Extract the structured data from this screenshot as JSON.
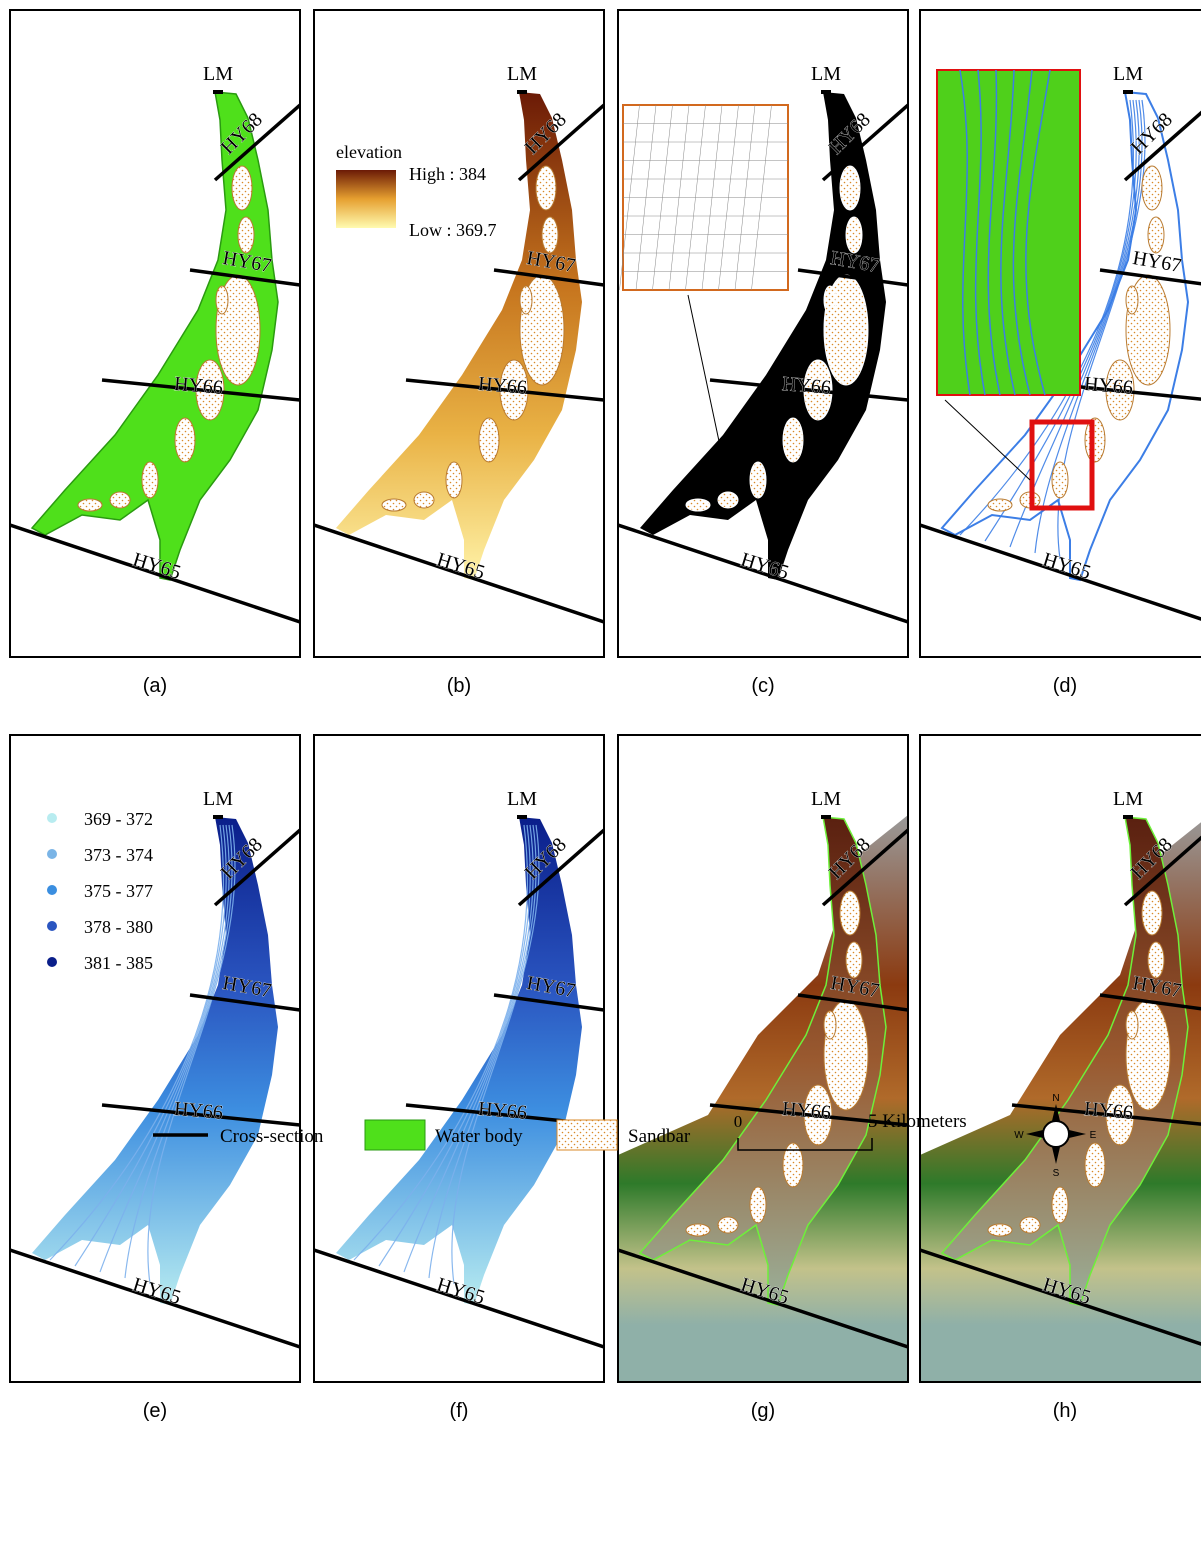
{
  "panels": [
    {
      "label": "(a)",
      "sections": [
        "LM",
        "HY68",
        "HY67",
        "HY66",
        "HY65"
      ]
    },
    {
      "label": "(b)",
      "sections": [
        "LM",
        "HY68",
        "HY67",
        "HY66",
        "HY65"
      ],
      "legend": {
        "title": "elevation",
        "high": "High : 384",
        "low": "Low : 369.7"
      }
    },
    {
      "label": "(c)",
      "sections": [
        "LM",
        "HY68",
        "HY67",
        "HY66",
        "HY65"
      ]
    },
    {
      "label": "(d)",
      "sections": [
        "LM",
        "HY68",
        "HY67",
        "HY66",
        "HY65"
      ]
    },
    {
      "label": "(e)",
      "sections": [
        "LM",
        "HY68",
        "HY67",
        "HY66",
        "HY65"
      ],
      "legend": {
        "classes": [
          "369 - 372",
          "373 - 374",
          "375 - 377",
          "378 - 380",
          "381 - 385"
        ]
      }
    },
    {
      "label": "(f)",
      "sections": [
        "LM",
        "HY68",
        "HY67",
        "HY66",
        "HY65"
      ]
    },
    {
      "label": "(g)",
      "sections": [
        "LM",
        "HY68",
        "HY67",
        "HY66",
        "HY65"
      ]
    },
    {
      "label": "(h)",
      "sections": [
        "LM",
        "HY68",
        "HY67",
        "HY66",
        "HY65"
      ]
    }
  ],
  "legend": {
    "cross_section": "Cross-section",
    "water_body": "Water body",
    "sandbar": "Sandbar",
    "scale_start": "0",
    "scale_end": "5 Kilometers",
    "compass": {
      "n": "N",
      "e": "E",
      "s": "S",
      "w": "W"
    }
  }
}
